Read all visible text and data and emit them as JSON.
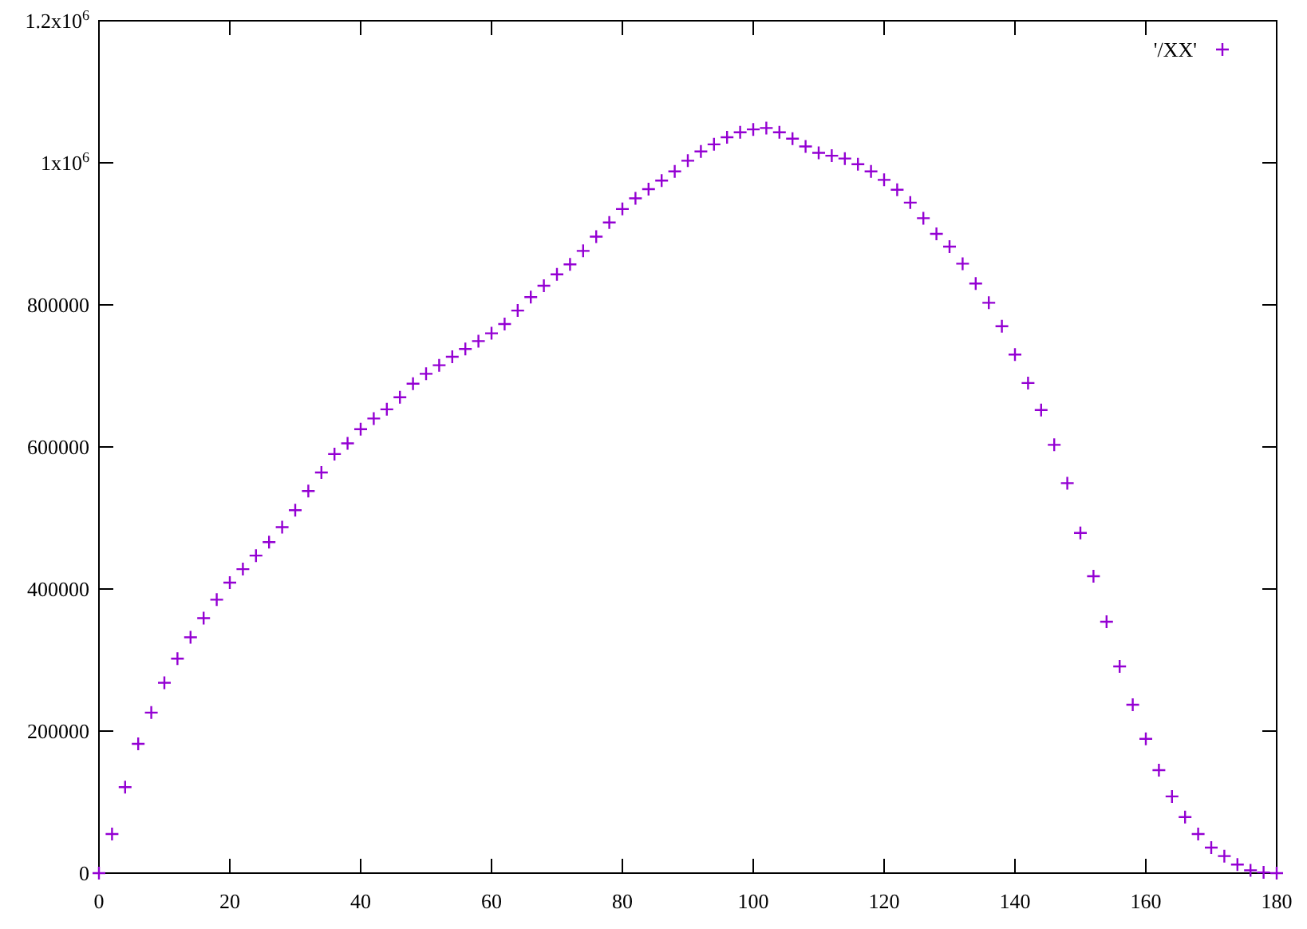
{
  "chart_data": {
    "type": "scatter",
    "marker": "cross",
    "legend": "top right",
    "grid": false,
    "x": [
      0,
      2,
      4,
      6,
      8,
      10,
      12,
      14,
      16,
      18,
      20,
      22,
      24,
      26,
      28,
      30,
      32,
      34,
      36,
      38,
      40,
      42,
      44,
      46,
      48,
      50,
      52,
      54,
      56,
      58,
      60,
      62,
      64,
      66,
      68,
      70,
      72,
      74,
      76,
      78,
      80,
      82,
      84,
      86,
      88,
      90,
      92,
      94,
      96,
      98,
      100,
      102,
      104,
      106,
      108,
      110,
      112,
      114,
      116,
      118,
      120,
      122,
      124,
      126,
      128,
      130,
      132,
      134,
      136,
      138,
      140,
      142,
      144,
      146,
      148,
      150,
      152,
      154,
      156,
      158,
      160,
      162,
      164,
      166,
      168,
      170,
      172,
      174,
      176,
      178,
      180
    ],
    "series": [
      {
        "name": "'/XX'",
        "color": "#9400d3",
        "values": [
          0,
          55000,
          121000,
          182000,
          226000,
          268000,
          302000,
          332000,
          359000,
          385000,
          409000,
          428000,
          447000,
          466000,
          487000,
          511000,
          538000,
          564000,
          590000,
          605000,
          625000,
          640000,
          653000,
          670000,
          689000,
          703000,
          715000,
          727000,
          738000,
          749000,
          760000,
          773000,
          792000,
          811000,
          827000,
          843000,
          857000,
          876000,
          896000,
          916000,
          935000,
          950000,
          963000,
          975000,
          988000,
          1003000,
          1016000,
          1026000,
          1036000,
          1043000,
          1047000,
          1049000,
          1043000,
          1034000,
          1023000,
          1014000,
          1010000,
          1006000,
          998000,
          988000,
          976000,
          962000,
          944000,
          922000,
          900000,
          882000,
          858000,
          830000,
          803000,
          770000,
          730000,
          690000,
          652000,
          603000,
          549000,
          479000,
          418000,
          354000,
          291000,
          237000,
          189000,
          145000,
          108000,
          79000,
          55000,
          36000,
          24000,
          12000,
          4000,
          1000,
          0
        ]
      }
    ],
    "xlim": [
      0,
      180
    ],
    "xticks": [
      0,
      20,
      40,
      60,
      80,
      100,
      120,
      140,
      160,
      180
    ],
    "ylim": [
      0,
      1200000
    ],
    "yticks": [
      0,
      200000,
      400000,
      600000,
      800000,
      {
        "value": 1000000,
        "label": "1x10$^{6}$"
      },
      {
        "value": 1200000,
        "label": "1.2x10$^{6}$"
      }
    ]
  }
}
